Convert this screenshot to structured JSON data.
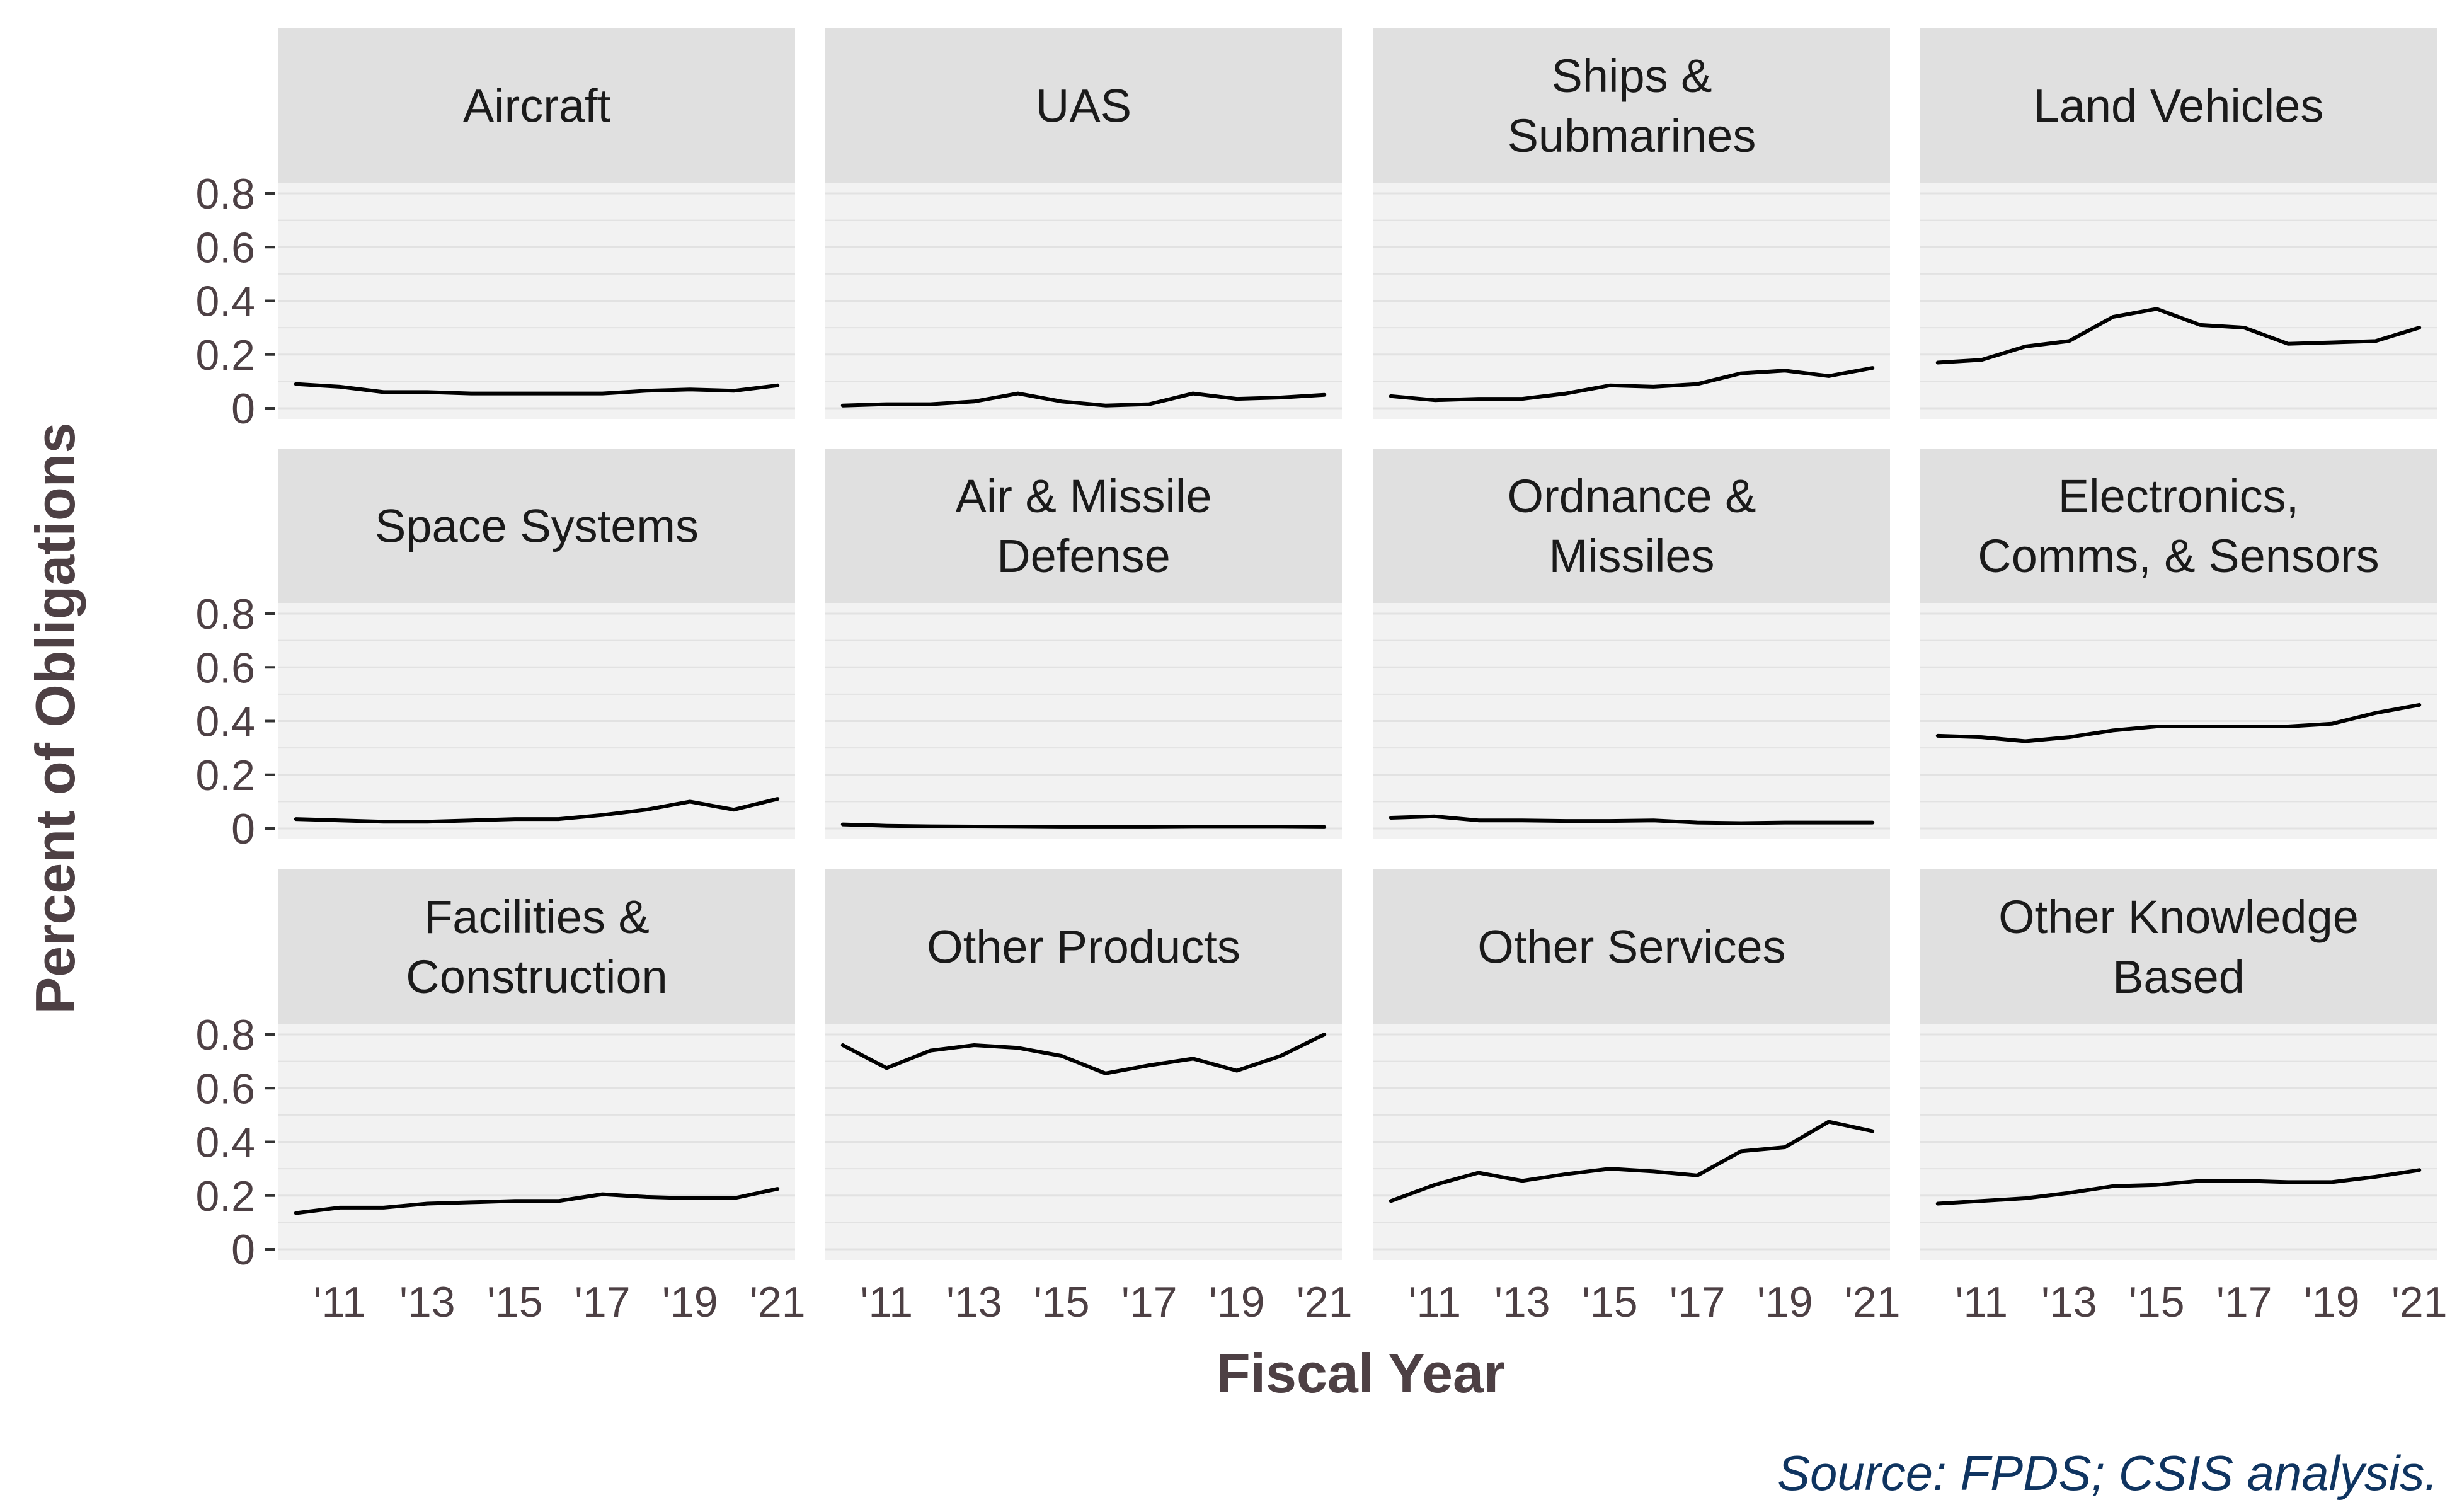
{
  "chart_data": {
    "type": "line",
    "facet_layout": "3 rows x 4 columns, shared axes",
    "xlabel": "Fiscal Year",
    "ylabel": "Percent of Obligations",
    "source": "Source: FPDS; CSIS analysis.",
    "x": [
      2010,
      2011,
      2012,
      2013,
      2014,
      2015,
      2016,
      2017,
      2018,
      2019,
      2020,
      2021
    ],
    "xlim": [
      2009.6,
      2021.4
    ],
    "ylim": [
      0,
      0.8
    ],
    "x_ticks": [
      2011,
      2013,
      2015,
      2017,
      2019,
      2021
    ],
    "x_tick_labels": [
      "'11",
      "'13",
      "'15",
      "'17",
      "'19",
      "'21"
    ],
    "y_ticks": [
      0,
      0.2,
      0.4,
      0.6,
      0.8
    ],
    "y_tick_labels": [
      "0",
      "0.2",
      "0.4",
      "0.6",
      "0.8"
    ],
    "grid": true,
    "line_color": "#000000",
    "panel_background": "#f2f2f2",
    "strip_background": "#e0e0e0",
    "panels": [
      {
        "title_lines": [
          "Aircraft"
        ],
        "values": [
          0.09,
          0.08,
          0.06,
          0.06,
          0.055,
          0.055,
          0.055,
          0.055,
          0.065,
          0.07,
          0.065,
          0.085
        ]
      },
      {
        "title_lines": [
          "UAS"
        ],
        "values": [
          0.01,
          0.015,
          0.015,
          0.025,
          0.055,
          0.025,
          0.01,
          0.015,
          0.055,
          0.035,
          0.04,
          0.05
        ]
      },
      {
        "title_lines": [
          "Ships &",
          "Submarines"
        ],
        "values": [
          0.045,
          0.03,
          0.035,
          0.035,
          0.055,
          0.085,
          0.08,
          0.09,
          0.13,
          0.14,
          0.12,
          0.15
        ]
      },
      {
        "title_lines": [
          "Land Vehicles"
        ],
        "values": [
          0.17,
          0.18,
          0.23,
          0.25,
          0.34,
          0.37,
          0.31,
          0.3,
          0.24,
          0.245,
          0.25,
          0.3
        ]
      },
      {
        "title_lines": [
          "Space Systems"
        ],
        "values": [
          0.035,
          0.03,
          0.025,
          0.025,
          0.03,
          0.035,
          0.035,
          0.05,
          0.07,
          0.1,
          0.07,
          0.11
        ]
      },
      {
        "title_lines": [
          "Air & Missile",
          "Defense"
        ],
        "values": [
          0.015,
          0.01,
          0.008,
          0.007,
          0.006,
          0.005,
          0.005,
          0.005,
          0.006,
          0.006,
          0.006,
          0.005
        ]
      },
      {
        "title_lines": [
          "Ordnance &",
          "Missiles"
        ],
        "values": [
          0.04,
          0.045,
          0.03,
          0.03,
          0.028,
          0.028,
          0.03,
          0.022,
          0.02,
          0.022,
          0.022,
          0.022
        ]
      },
      {
        "title_lines": [
          "Electronics,",
          "Comms, & Sensors"
        ],
        "values": [
          0.345,
          0.34,
          0.325,
          0.34,
          0.365,
          0.38,
          0.38,
          0.38,
          0.38,
          0.39,
          0.43,
          0.46
        ]
      },
      {
        "title_lines": [
          "Facilities &",
          "Construction"
        ],
        "values": [
          0.135,
          0.155,
          0.155,
          0.17,
          0.175,
          0.18,
          0.18,
          0.205,
          0.195,
          0.19,
          0.19,
          0.225
        ]
      },
      {
        "title_lines": [
          "Other Products"
        ],
        "values": [
          0.76,
          0.675,
          0.74,
          0.76,
          0.75,
          0.72,
          0.655,
          0.685,
          0.71,
          0.665,
          0.72,
          0.8
        ]
      },
      {
        "title_lines": [
          "Other Services"
        ],
        "values": [
          0.18,
          0.24,
          0.285,
          0.255,
          0.28,
          0.3,
          0.29,
          0.275,
          0.365,
          0.38,
          0.475,
          0.44
        ]
      },
      {
        "title_lines": [
          "Other Knowledge",
          "Based"
        ],
        "values": [
          0.17,
          0.18,
          0.19,
          0.21,
          0.235,
          0.24,
          0.255,
          0.255,
          0.25,
          0.25,
          0.27,
          0.295
        ]
      }
    ]
  }
}
